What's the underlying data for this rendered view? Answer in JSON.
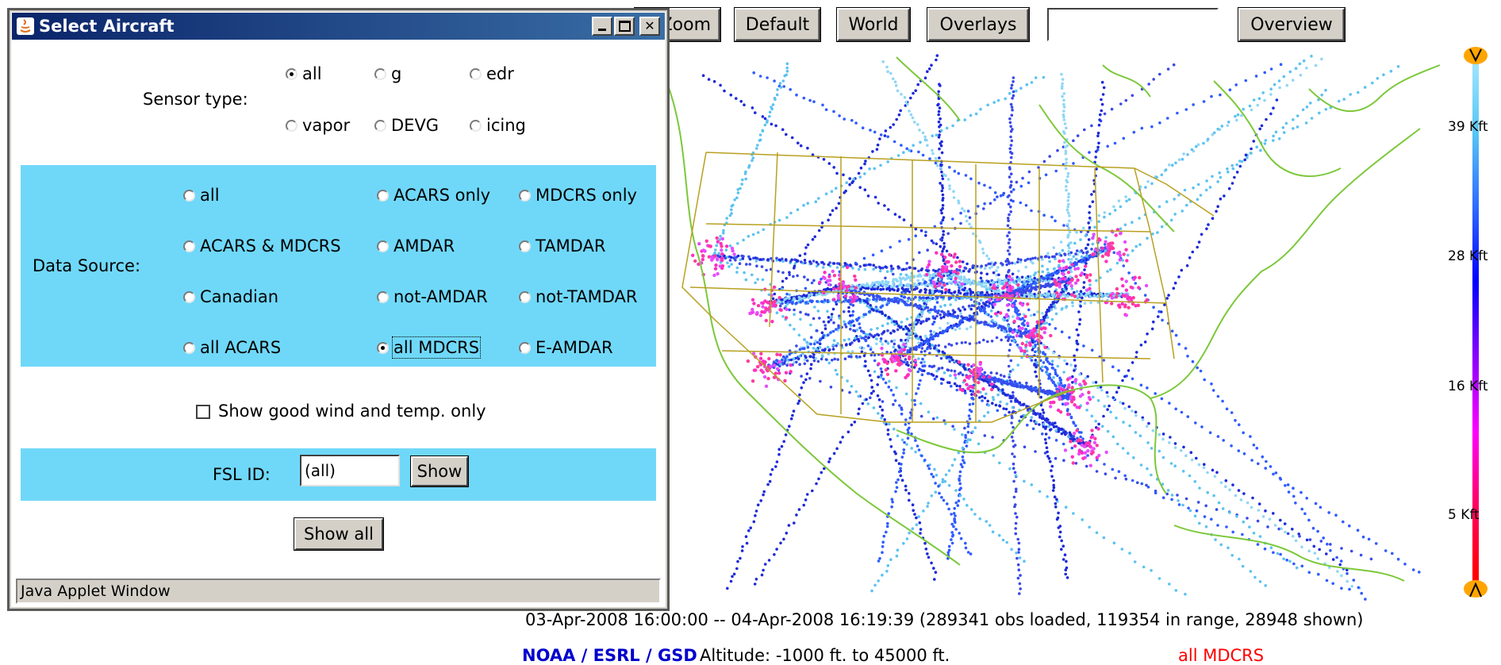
{
  "toolbar": {
    "zoom_label": "Zoom",
    "default_label": "Default",
    "world_label": "World",
    "overlays_label": "Overlays",
    "search_value": "",
    "overview_label": "Overview"
  },
  "legend": {
    "labels": [
      "39 Kft",
      "28 Kft",
      "16 Kft",
      "5 Kft"
    ],
    "colors": [
      "#a6e6ff",
      "#57c7f5",
      "#2f6bff",
      "#0000ff",
      "#8a00ff",
      "#ff00ff",
      "#ff0060",
      "#ff0000"
    ],
    "handle_color": "#ffa500"
  },
  "footer": {
    "range_text": "03-Apr-2008 16:00:00 -- 04-Apr-2008 16:19:39 (289341 obs loaded, 119354 in range, 28948 shown)",
    "org_text": "NOAA / ESRL / GSD",
    "altitude_text": "Altitude: -1000 ft. to 45000 ft.",
    "filter_text": "all MDCRS"
  },
  "dialog": {
    "title": "Select Aircraft",
    "sensor_type_label": "Sensor type:",
    "sensor_options": [
      "all",
      "g",
      "edr",
      "vapor",
      "DEVG",
      "icing"
    ],
    "sensor_selected": "all",
    "data_source_label": "Data Source:",
    "data_source_options": [
      "all",
      "ACARS only",
      "MDCRS only",
      "ACARS & MDCRS",
      "AMDAR",
      "TAMDAR",
      "Canadian",
      "not-AMDAR",
      "not-TAMDAR",
      "all ACARS",
      "all MDCRS",
      "E-AMDAR"
    ],
    "data_source_selected": "all MDCRS",
    "good_only_label": "Show good wind and temp. only",
    "good_only_checked": false,
    "fsl_id_label": "FSL ID:",
    "fsl_id_value": "(all)",
    "show_label": "Show",
    "show_all_label": "Show all",
    "status_text": "Java Applet Window"
  },
  "colors": {
    "section_bg": "#6fd8f9",
    "title_bar": "#0a246a",
    "org_text": "#0000cc",
    "filter_text": "#ff0000"
  }
}
